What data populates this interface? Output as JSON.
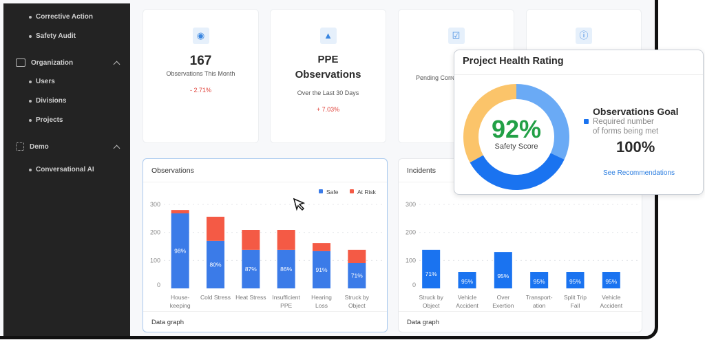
{
  "sidebar": {
    "items": [
      {
        "label": "Corrective Action",
        "type": "sub"
      },
      {
        "label": "Safety Audit",
        "type": "sub"
      },
      {
        "label": "Organization",
        "type": "group",
        "icon": "presentation-icon"
      },
      {
        "label": "Users",
        "type": "sub"
      },
      {
        "label": "Divisions",
        "type": "sub"
      },
      {
        "label": "Projects",
        "type": "sub"
      },
      {
        "label": "Demo",
        "type": "group",
        "icon": "chip-icon"
      },
      {
        "label": "Conversational AI",
        "type": "sub"
      }
    ]
  },
  "kpis": [
    {
      "icon": "eye-icon",
      "value": "167",
      "label": "Observations This Month",
      "delta": "- 2.71%"
    },
    {
      "icon": "cone-icon",
      "value": "PPE Observations",
      "label": "Over the Last 30 Days",
      "delta": "+ 7.03%"
    },
    {
      "icon": "checkbox-icon",
      "label": "Pending Corrective Actions"
    },
    {
      "icon": "alert-circle-icon"
    }
  ],
  "popup": {
    "title": "Project Health Rating",
    "score": "92%",
    "score_label": "Safety Score",
    "goal_title": "Observations Goal",
    "goal_desc_1": "Required number",
    "goal_desc_2": "of forms being met",
    "goal_value": "100%",
    "link": "See Recommendations",
    "segments": [
      32,
      35,
      33
    ],
    "colors": [
      "#6aaaf5",
      "#1a73f0",
      "#fbc46a"
    ]
  },
  "chart_data": [
    {
      "type": "bar",
      "title": "Observations",
      "footer": "Data graph",
      "stacked": true,
      "ylim": [
        0,
        300
      ],
      "yticks": [
        "0",
        "100",
        "200",
        "300"
      ],
      "categories": [
        [
          "House-",
          "keeping"
        ],
        [
          "Cold Stress"
        ],
        [
          "Heat Stress"
        ],
        [
          "Insufficient",
          "PPE"
        ],
        [
          "Hearing",
          "Loss"
        ],
        [
          "Struck by",
          "Object"
        ]
      ],
      "series": [
        {
          "name": "Safe",
          "color": "#3b7be8",
          "values": [
            268,
            170,
            138,
            138,
            133,
            91
          ]
        },
        {
          "name": "At Risk",
          "color": "#f45a45",
          "values": [
            12,
            86,
            71,
            71,
            29,
            47
          ]
        }
      ],
      "labels": [
        "98%",
        "80%",
        "87%",
        "86%",
        "91%",
        "71%"
      ]
    },
    {
      "type": "bar",
      "title": "Incidents",
      "footer": "Data graph",
      "ylim": [
        0,
        300
      ],
      "yticks": [
        "0",
        "100",
        "200",
        "300"
      ],
      "categories": [
        [
          "Struck by",
          "Object"
        ],
        [
          "Vehicle",
          "Accident"
        ],
        [
          "Over",
          "Exertion"
        ],
        [
          "Transport-",
          "ation"
        ],
        [
          "Split Trip",
          "Fall"
        ],
        [
          "Vehicle",
          "Accident"
        ]
      ],
      "series": [
        {
          "name": "Incidents",
          "color": "#1a73f0",
          "values": [
            138,
            59,
            130,
            59,
            59,
            59
          ]
        }
      ],
      "labels": [
        "71%",
        "95%",
        "95%",
        "95%",
        "95%",
        "95%"
      ]
    }
  ]
}
